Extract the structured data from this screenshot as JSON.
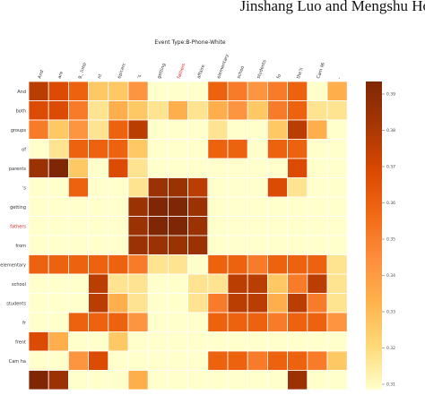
{
  "page": {
    "running_head": "Jinshang Luo and Mengshu Ho"
  },
  "chart_data": {
    "type": "heatmap",
    "title": "Event Type:B-Phone-White",
    "x_labels": [
      "And",
      "are",
      "g_ (uep",
      "nt",
      "epicerc",
      "’s",
      "getting",
      "fathers",
      "affaire",
      "elementary",
      "schoo",
      "students",
      "fo",
      "the'll",
      "Cam Mi",
      ","
    ],
    "y_labels": [
      "And",
      "both",
      "groups",
      "of",
      "parents",
      "'s",
      "getting",
      "fathers",
      "from",
      "elementary",
      "school",
      "students",
      "fr",
      "frent",
      "Cam ha",
      ""
    ],
    "highlight_labels": [
      "fathers"
    ],
    "colorbar_ticks": [
      "0.39",
      "0.38",
      "0.37",
      "0.36",
      "0.35",
      "0.34",
      "0.33",
      "0.32",
      "0.31"
    ],
    "colorscale": [
      "#ffffcc",
      "#fed976",
      "#feb24c",
      "#fd8d3c",
      "#f16913",
      "#d94801",
      "#a63603",
      "#7f2704"
    ],
    "values": [
      [
        0.8,
        0.7,
        0.6,
        0.2,
        0.2,
        0.4,
        0.0,
        0.0,
        0.0,
        0.6,
        0.5,
        0.4,
        0.5,
        0.6,
        0.0,
        0.3
      ],
      [
        0.7,
        0.7,
        0.5,
        0.1,
        0.3,
        0.2,
        0.1,
        0.3,
        0.1,
        0.3,
        0.4,
        0.2,
        0.5,
        0.6,
        0.1,
        0.1
      ],
      [
        0.5,
        0.2,
        0.4,
        0.1,
        0.6,
        0.8,
        0.0,
        0.0,
        0.0,
        0.1,
        0.0,
        0.0,
        0.2,
        0.8,
        0.3,
        0.0
      ],
      [
        0.0,
        0.1,
        0.6,
        0.6,
        0.6,
        0.2,
        0.0,
        0.0,
        0.0,
        0.6,
        0.6,
        0.0,
        0.6,
        0.6,
        0.0,
        0.0
      ],
      [
        0.9,
        1.0,
        0.2,
        0.0,
        0.7,
        0.1,
        0.0,
        0.0,
        0.0,
        0.0,
        0.0,
        0.0,
        0.0,
        0.7,
        0.0,
        0.0
      ],
      [
        0.0,
        0.0,
        0.6,
        0.0,
        0.0,
        0.1,
        0.9,
        0.9,
        0.8,
        0.0,
        0.0,
        0.0,
        0.7,
        0.1,
        0.0,
        0.0
      ],
      [
        0.0,
        0.0,
        0.0,
        0.0,
        0.0,
        0.9,
        1.0,
        1.0,
        0.9,
        0.0,
        0.0,
        0.0,
        0.0,
        0.0,
        0.0,
        0.0
      ],
      [
        0.0,
        0.0,
        0.0,
        0.0,
        0.0,
        0.9,
        1.0,
        1.0,
        0.9,
        0.0,
        0.0,
        0.0,
        0.0,
        0.0,
        0.0,
        0.0
      ],
      [
        0.0,
        0.0,
        0.0,
        0.0,
        0.0,
        0.9,
        0.9,
        0.9,
        0.9,
        0.0,
        0.0,
        0.0,
        0.0,
        0.0,
        0.0,
        0.0
      ],
      [
        0.6,
        0.6,
        0.6,
        0.6,
        0.6,
        0.5,
        0.1,
        0.1,
        0.0,
        0.6,
        0.6,
        0.5,
        0.6,
        0.6,
        0.6,
        0.1
      ],
      [
        0.0,
        0.0,
        0.0,
        0.8,
        0.1,
        0.1,
        0.0,
        0.0,
        0.1,
        0.1,
        0.8,
        0.8,
        0.2,
        0.5,
        0.8,
        0.1
      ],
      [
        0.0,
        0.0,
        0.0,
        0.8,
        0.3,
        0.1,
        0.0,
        0.0,
        0.1,
        0.5,
        0.8,
        0.8,
        0.3,
        0.8,
        0.5,
        0.1
      ],
      [
        0.0,
        0.0,
        0.6,
        0.6,
        0.6,
        0.4,
        0.0,
        0.0,
        0.0,
        0.6,
        0.6,
        0.6,
        0.5,
        0.6,
        0.6,
        0.4
      ],
      [
        0.7,
        0.3,
        0.0,
        0.0,
        0.2,
        0.0,
        0.0,
        0.0,
        0.0,
        0.0,
        0.0,
        0.0,
        0.0,
        0.0,
        0.0,
        0.0
      ],
      [
        0.0,
        0.0,
        0.4,
        0.7,
        0.0,
        0.0,
        0.0,
        0.0,
        0.0,
        0.6,
        0.6,
        0.5,
        0.6,
        0.6,
        0.5,
        0.2
      ],
      [
        1.0,
        0.9,
        0.0,
        0.0,
        0.0,
        0.3,
        0.0,
        0.0,
        0.0,
        0.0,
        0.0,
        0.0,
        0.0,
        0.9,
        0.0,
        0.0
      ]
    ]
  }
}
